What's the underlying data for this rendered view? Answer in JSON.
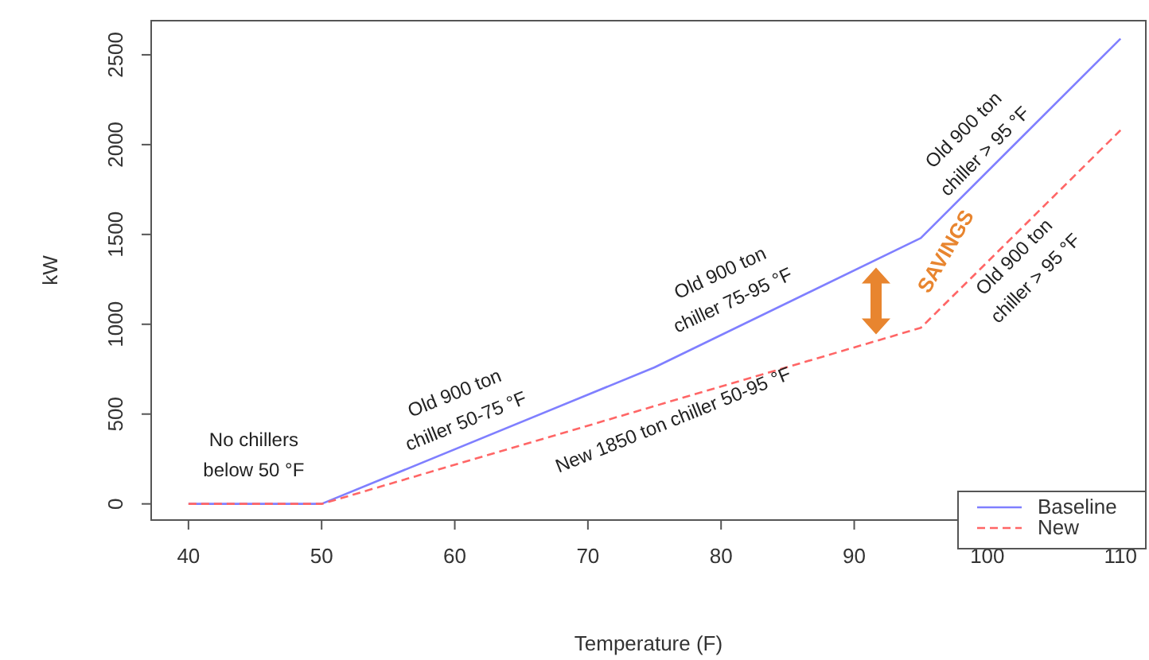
{
  "chart_data": {
    "type": "line",
    "xlabel": "Temperature (F)",
    "ylabel": "kW",
    "xlim": [
      37.2,
      111.9
    ],
    "ylim": [
      -90,
      2690
    ],
    "xticks": [
      40,
      50,
      60,
      70,
      80,
      90,
      100,
      110
    ],
    "yticks": [
      0,
      500,
      1000,
      1500,
      2000,
      2500
    ],
    "legend": "bottom right",
    "grid": false,
    "series": [
      {
        "name": "Baseline",
        "color": "#7f7fff",
        "line_style": "solid",
        "x": [
          40,
          50,
          75,
          95,
          110
        ],
        "values": [
          0,
          0,
          760,
          1480,
          2590
        ]
      },
      {
        "name": "New",
        "color": "#ff6666",
        "line_style": "dashed",
        "x": [
          40,
          50,
          95,
          110
        ],
        "values": [
          0,
          0,
          980,
          2080
        ]
      }
    ],
    "annotations": [
      "No chillers\nbelow 50 °F",
      "Old 900 ton\nchiller 50-75 °F",
      "New 1850 ton chiller 50-95 °F",
      "Old 900 ton\nchiller 75-95 °F",
      "Old 900 ton\nchiller > 95 °F",
      "Old 900 ton\nchiller > 95 °F",
      "SAVINGS"
    ]
  }
}
